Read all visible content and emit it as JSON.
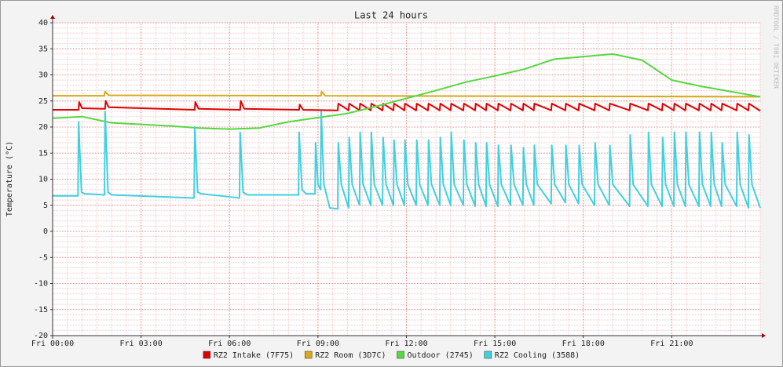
{
  "chart_data": {
    "type": "line",
    "title": "Last 24 hours",
    "y_label": "Temperature (°C)",
    "watermark": "RRDTOOL / TOBI OETIKER",
    "xlim": [
      0,
      24
    ],
    "xticks": [
      {
        "value": 0,
        "label": "Fri 00:00"
      },
      {
        "value": 3,
        "label": "Fri 03:00"
      },
      {
        "value": 6,
        "label": "Fri 06:00"
      },
      {
        "value": 9,
        "label": "Fri 09:00"
      },
      {
        "value": 12,
        "label": "Fri 12:00"
      },
      {
        "value": 15,
        "label": "Fri 15:00"
      },
      {
        "value": 18,
        "label": "Fri 18:00"
      },
      {
        "value": 21,
        "label": "Fri 21:00"
      }
    ],
    "ylim": [
      -20,
      40
    ],
    "yticks": [
      -20,
      -15,
      -10,
      -5,
      0,
      5,
      10,
      15,
      20,
      25,
      30,
      35,
      40
    ],
    "grid": true,
    "legend": "bottom",
    "series": [
      {
        "name": "RZ2 Intake (7F75)",
        "color": "#e00000",
        "x": [
          0,
          0.88,
          0.9,
          1.0,
          1.78,
          1.8,
          1.9,
          4.82,
          4.84,
          4.95,
          6.36,
          6.38,
          6.5,
          8.36,
          8.38,
          8.5,
          9.67,
          9.69,
          10.04,
          10.06,
          10.41,
          10.43,
          10.79,
          10.81,
          11.19,
          11.21,
          11.56,
          11.58,
          11.93,
          11.95,
          12.33,
          12.35,
          12.73,
          12.75,
          13.13,
          13.15,
          13.5,
          13.52,
          13.93,
          13.95,
          14.33,
          14.35,
          14.7,
          14.72,
          15.1,
          15.12,
          15.53,
          15.55,
          15.95,
          15.97,
          16.32,
          16.34,
          16.91,
          16.93,
          17.39,
          17.41,
          17.84,
          17.86,
          18.38,
          18.4,
          18.88,
          18.9,
          19.57,
          19.59,
          20.19,
          20.21,
          20.67,
          20.69,
          21.07,
          21.09,
          21.46,
          21.48,
          21.92,
          21.94,
          22.32,
          22.34,
          22.69,
          22.71,
          23.2,
          23.22,
          23.6,
          23.62,
          24
        ],
        "values": [
          23.3,
          23.3,
          24.8,
          23.6,
          23.5,
          25,
          23.8,
          23.3,
          24.8,
          23.5,
          23.3,
          25,
          23.5,
          23.3,
          24.3,
          23.3,
          23.2,
          24.5,
          23.2,
          24.5,
          23.2,
          24.5,
          23.2,
          24.5,
          23.2,
          24.5,
          23.2,
          24.5,
          23.2,
          24.5,
          23.2,
          24.5,
          23.2,
          24.5,
          23.2,
          24.5,
          23.2,
          24.5,
          23.2,
          24.5,
          23.2,
          24.5,
          23.2,
          24.5,
          23.2,
          24.5,
          23.2,
          24.5,
          23.2,
          24.5,
          23.2,
          24.5,
          23.2,
          24.5,
          23.2,
          24.5,
          23.2,
          24.5,
          23.2,
          24.5,
          23.2,
          24.5,
          23.2,
          24.5,
          23.2,
          24.5,
          23.2,
          24.5,
          23.2,
          24.5,
          23.2,
          24.5,
          23.2,
          24.5,
          23.2,
          24.5,
          23.2,
          24.5,
          23.2,
          24.5,
          23.2,
          24.5,
          23.1
        ]
      },
      {
        "name": "RZ2 Room (3D7C)",
        "color": "#d8a818",
        "x": [
          0,
          1.75,
          1.78,
          1.9,
          9.1,
          9.12,
          9.25,
          24
        ],
        "values": [
          26,
          26,
          26.8,
          26.1,
          26,
          26.8,
          26,
          25.8
        ]
      },
      {
        "name": "Outdoor (2745)",
        "color": "#55d840",
        "x": [
          0,
          1,
          2,
          3,
          4,
          5,
          6,
          7,
          8,
          9,
          10,
          11,
          12,
          13,
          14,
          15,
          16,
          17,
          18,
          19,
          20,
          21,
          22,
          23,
          24
        ],
        "values": [
          21.7,
          22,
          20.8,
          20.5,
          20.2,
          19.8,
          19.6,
          19.8,
          21,
          21.8,
          22.6,
          24,
          25.5,
          27,
          28.6,
          29.8,
          31.1,
          33,
          33.5,
          34,
          32.8,
          29,
          27.8,
          26.8,
          25.8
        ]
      },
      {
        "name": "RZ2 Cooling (3588)",
        "color": "#40d0e0",
        "x": [
          0,
          0.86,
          0.88,
          0.98,
          1.1,
          1.76,
          1.78,
          1.88,
          2.0,
          4.8,
          4.82,
          4.92,
          5.05,
          6.34,
          6.36,
          6.46,
          6.6,
          8.34,
          8.36,
          8.46,
          8.6,
          8.9,
          8.92,
          9.0,
          9.09,
          9.11,
          9.2,
          9.4,
          9.67,
          9.69,
          9.79,
          10.04,
          10.06,
          10.16,
          10.41,
          10.43,
          10.53,
          10.79,
          10.81,
          10.91,
          11.19,
          11.21,
          11.31,
          11.56,
          11.58,
          11.68,
          11.93,
          11.95,
          12.05,
          12.33,
          12.35,
          12.45,
          12.73,
          12.75,
          12.85,
          13.13,
          13.15,
          13.25,
          13.5,
          13.52,
          13.62,
          13.93,
          13.95,
          14.05,
          14.33,
          14.35,
          14.45,
          14.7,
          14.72,
          14.82,
          15.1,
          15.12,
          15.22,
          15.53,
          15.55,
          15.65,
          15.95,
          15.97,
          16.07,
          16.32,
          16.34,
          16.44,
          16.91,
          16.93,
          17.03,
          17.39,
          17.41,
          17.51,
          17.84,
          17.86,
          17.96,
          18.38,
          18.4,
          18.5,
          18.88,
          18.9,
          19.0,
          19.57,
          19.59,
          19.69,
          20.19,
          20.21,
          20.31,
          20.67,
          20.69,
          20.79,
          21.07,
          21.09,
          21.19,
          21.46,
          21.48,
          21.58,
          21.92,
          21.94,
          22.04,
          22.32,
          22.34,
          22.44,
          22.69,
          22.71,
          22.81,
          23.2,
          23.22,
          23.32,
          23.6,
          23.62,
          23.72,
          24
        ],
        "values": [
          6.8,
          6.8,
          21,
          7.5,
          7.2,
          7.0,
          23,
          7.5,
          7.0,
          6.4,
          20,
          7.5,
          7.2,
          6.4,
          19,
          7.5,
          7.0,
          7.0,
          19,
          8,
          7.2,
          7.2,
          17,
          9,
          8,
          23,
          9,
          4.5,
          4.3,
          17,
          9,
          4.5,
          18,
          9,
          5,
          19,
          9,
          5,
          19,
          9,
          5,
          18,
          9,
          5,
          17.5,
          9,
          5,
          17.5,
          9,
          5,
          17.5,
          9,
          5,
          17.5,
          9,
          5,
          18,
          9,
          5,
          19,
          9,
          5,
          17.5,
          9,
          4.8,
          17,
          9,
          4.8,
          17,
          9,
          4.8,
          16.5,
          9,
          5,
          16.5,
          9,
          5,
          16,
          9,
          5,
          16.5,
          9,
          5.3,
          16.5,
          9,
          5.5,
          16.5,
          9,
          5.3,
          16.5,
          9,
          5,
          17,
          9,
          5,
          16.5,
          9,
          4.8,
          18.5,
          9,
          4.8,
          19,
          9,
          4.8,
          18,
          9,
          4.8,
          19,
          9,
          4.8,
          19,
          9,
          4.8,
          19,
          9,
          4.8,
          19,
          9,
          4.8,
          17,
          9,
          4.8,
          19,
          9,
          4.5,
          18.5,
          9,
          4.5
        ]
      }
    ]
  }
}
